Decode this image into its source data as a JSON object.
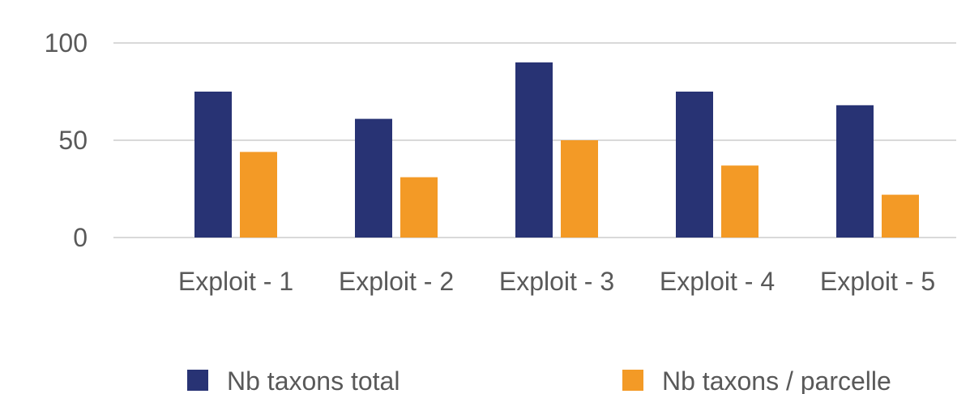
{
  "chart_data": {
    "type": "bar",
    "title": "",
    "xlabel": "",
    "ylabel": "",
    "ylim": [
      0,
      100
    ],
    "yticks": [
      0,
      50,
      100
    ],
    "categories": [
      "Exploit - 1",
      "Exploit - 2",
      "Exploit - 3",
      "Exploit - 4",
      "Exploit - 5"
    ],
    "series": [
      {
        "name": "Nb taxons total",
        "color": "#283374",
        "values": [
          75,
          61,
          90,
          75,
          68
        ]
      },
      {
        "name": "Nb taxons / parcelle",
        "color": "#F39A26",
        "values": [
          44,
          31,
          50,
          37,
          22
        ]
      }
    ],
    "grid": true,
    "gridColor": "#d9d9d9",
    "legend": "bottom"
  }
}
